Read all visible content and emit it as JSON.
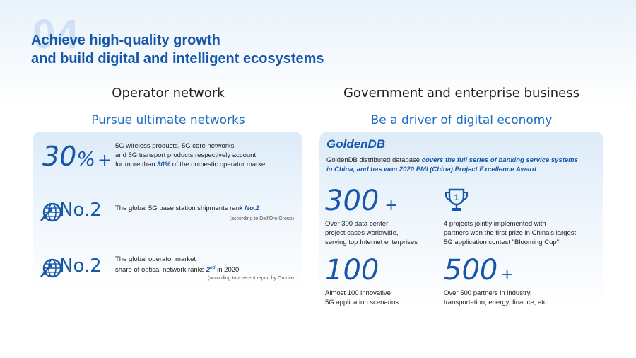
{
  "header": {
    "section_number": "04",
    "title_line1": "Achieve high-quality growth",
    "title_line2": "and build digital and intelligent ecosystems"
  },
  "left": {
    "heading": "Operator network",
    "subheading": "Pursue ultimate networks",
    "stat1": {
      "value": "30",
      "unit": "%",
      "suffix": "+",
      "line1": "5G wireless products, 5G core networks",
      "line2": "and 5G transport products respectively account",
      "line3_pre": "for more than ",
      "line3_hl": "30%",
      "line3_post": " of the domestic operator market"
    },
    "stat2": {
      "value": "No.2",
      "line1_pre": "The global 5G base station shipments rank ",
      "line1_hl": "No.2",
      "note": "(according to Dell'Oro Group)"
    },
    "stat3": {
      "value": "No.2",
      "line1": "The global operator market",
      "line2_pre": "share of optical network ranks ",
      "line2_hl": "2",
      "line2_sup": "nd",
      "line2_post": " in 2020",
      "note": "(according to a recent report by Omdia)"
    }
  },
  "right": {
    "heading": "Government and enterprise business",
    "subheading": "Be a driver of digital economy",
    "product": "GoldenDB",
    "desc_pre": "GoldenDB distributed database ",
    "desc_hl1": "covers the full series of banking service systems",
    "desc_hl2": "in China, and has won 2020 PMI (China) Project Excellence Award",
    "stat1": {
      "value": "300",
      "suffix": "+",
      "line1": "Over 300 data center",
      "line2": "project cases worldwide,",
      "line3": "serving top Internet enterprises"
    },
    "stat2": {
      "icon_digit": "1",
      "line1": "4 projects jointly implemented with",
      "line2": "partners won the first prize in China's largest",
      "line3": "5G application contest \"Blooming Cup\""
    },
    "stat3": {
      "value": "100",
      "line1": "Almost 100 innovative",
      "line2": "5G application scenarios"
    },
    "stat4": {
      "value": "500",
      "suffix": "+",
      "line1": "Over 500 partners in industry,",
      "line2": "transportation, energy, finance, etc."
    }
  },
  "colors": {
    "brand_blue": "#1757a8",
    "accent_blue": "#1b6fc2"
  }
}
